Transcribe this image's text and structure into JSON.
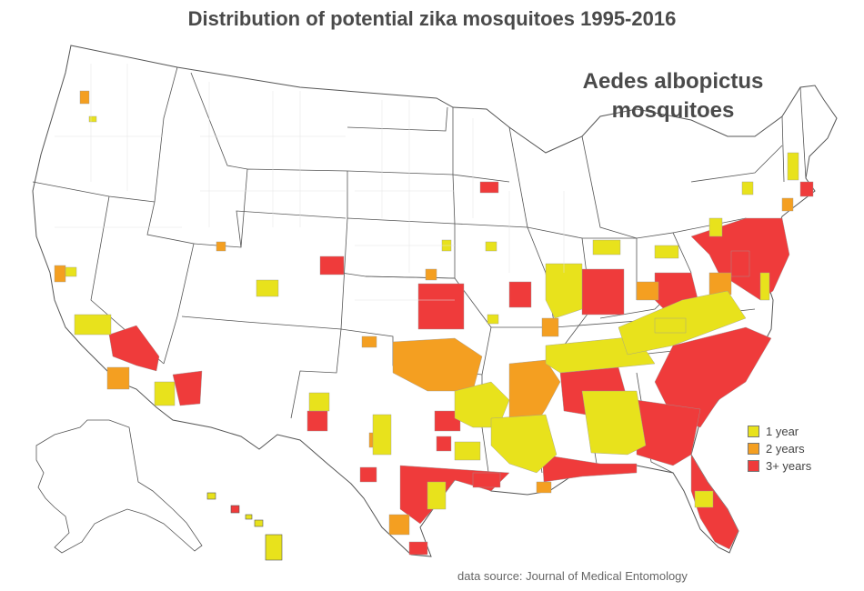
{
  "title": "Distribution of potential zika mosquitoes 1995-2016",
  "subtitle_line1": "Aedes albopictus",
  "subtitle_line2": "mosquitoes",
  "legend": [
    {
      "label": "1 year",
      "color": "#e8e21c"
    },
    {
      "label": "2 years",
      "color": "#f49f21"
    },
    {
      "label": "3+ years",
      "color": "#ef3b3b"
    }
  ],
  "source": "data source: Journal of Medical Entomology",
  "colors": {
    "one_year": "#e8e21c",
    "two_years": "#f49f21",
    "three_plus": "#ef3b3b",
    "border": "#555555",
    "county": "#e3e3e3"
  }
}
